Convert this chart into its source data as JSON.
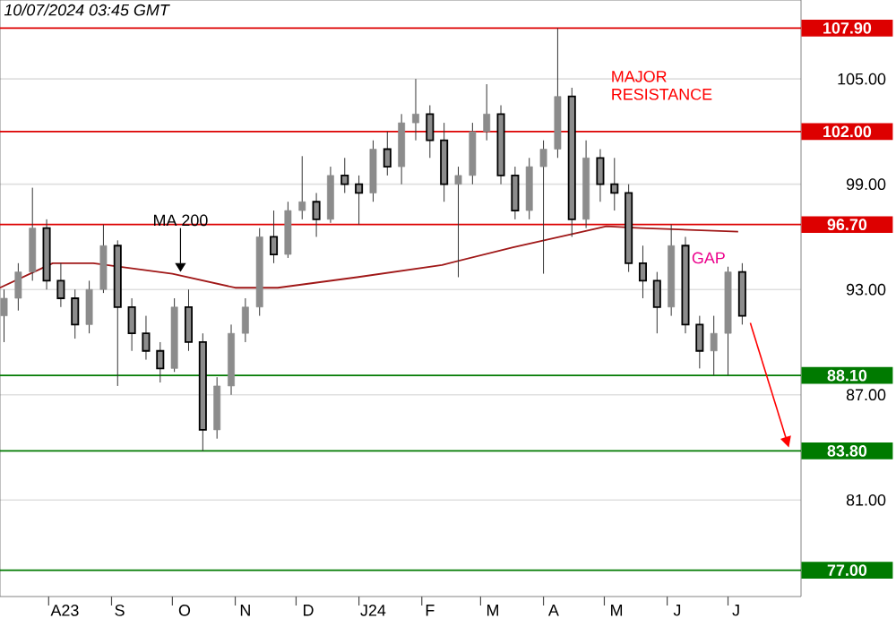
{
  "chart_data": {
    "type": "candlestick",
    "title": "10/07/2024 03:45 GMT",
    "color": "#8c8c8c",
    "x": [
      "2023-07-10",
      "2023-07-17",
      "2023-07-24",
      "2023-07-31",
      "2023-08-07",
      "2023-08-14",
      "2023-08-21",
      "2023-08-28",
      "2023-09-04",
      "2023-09-11",
      "2023-09-18",
      "2023-09-25",
      "2023-10-02",
      "2023-10-09",
      "2023-10-16",
      "2023-10-23",
      "2023-10-30",
      "2023-11-06",
      "2023-11-13",
      "2023-11-20",
      "2023-11-27",
      "2023-12-04",
      "2023-12-11",
      "2023-12-18",
      "2023-12-25",
      "2024-01-01",
      "2024-01-08",
      "2024-01-15",
      "2024-01-22",
      "2024-01-29",
      "2024-02-05",
      "2024-02-12",
      "2024-02-19",
      "2024-02-26",
      "2024-03-04",
      "2024-03-11",
      "2024-03-18",
      "2024-03-25",
      "2024-04-01",
      "2024-04-08",
      "2024-04-15",
      "2024-04-22",
      "2024-04-29",
      "2024-05-06",
      "2024-05-13",
      "2024-05-20",
      "2024-05-27",
      "2024-06-03",
      "2024-06-10",
      "2024-06-17",
      "2024-06-24",
      "2024-07-01",
      "2024-07-08"
    ],
    "ohlc": [
      [
        91.5,
        93.0,
        90.0,
        92.5
      ],
      [
        92.5,
        94.5,
        91.8,
        94.0
      ],
      [
        94.0,
        98.8,
        93.5,
        96.5
      ],
      [
        96.5,
        97.0,
        93.0,
        93.5
      ],
      [
        93.5,
        94.5,
        92.0,
        92.5
      ],
      [
        92.5,
        93.0,
        90.2,
        91.0
      ],
      [
        91.0,
        93.5,
        90.5,
        93.0
      ],
      [
        93.0,
        96.7,
        92.8,
        95.5
      ],
      [
        95.5,
        95.8,
        87.5,
        92.0
      ],
      [
        92.0,
        92.5,
        89.5,
        90.5
      ],
      [
        90.5,
        91.5,
        89.0,
        89.5
      ],
      [
        89.5,
        90.0,
        87.7,
        88.5
      ],
      [
        88.5,
        92.5,
        88.3,
        92.0
      ],
      [
        92.0,
        93.0,
        89.5,
        90.0
      ],
      [
        90.0,
        90.5,
        83.8,
        85.0
      ],
      [
        85.0,
        88.0,
        84.5,
        87.5
      ],
      [
        87.5,
        91.0,
        87.0,
        90.5
      ],
      [
        90.5,
        92.5,
        90.0,
        92.0
      ],
      [
        92.0,
        96.5,
        91.5,
        96.0
      ],
      [
        96.0,
        97.5,
        94.5,
        95.0
      ],
      [
        95.0,
        98.0,
        94.8,
        97.5
      ],
      [
        97.5,
        100.6,
        97.0,
        98.0
      ],
      [
        98.0,
        98.5,
        96.0,
        97.0
      ],
      [
        97.0,
        100.0,
        96.8,
        99.5
      ],
      [
        99.5,
        100.5,
        98.5,
        99.0
      ],
      [
        99.0,
        99.5,
        96.7,
        98.5
      ],
      [
        98.5,
        101.5,
        98.0,
        101.0
      ],
      [
        101.0,
        102.0,
        99.5,
        100.0
      ],
      [
        100.0,
        103.0,
        99.0,
        102.5
      ],
      [
        102.5,
        105.0,
        101.5,
        103.0
      ],
      [
        103.0,
        103.5,
        100.5,
        101.5
      ],
      [
        101.5,
        102.5,
        98.0,
        99.0
      ],
      [
        99.0,
        100.0,
        93.7,
        99.5
      ],
      [
        99.5,
        102.5,
        99.0,
        102.0
      ],
      [
        102.0,
        104.7,
        101.5,
        103.0
      ],
      [
        103.0,
        103.5,
        99.0,
        99.5
      ],
      [
        99.5,
        100.0,
        97.0,
        97.5
      ],
      [
        97.5,
        100.5,
        97.0,
        100.0
      ],
      [
        100.0,
        101.5,
        93.9,
        101.0
      ],
      [
        101.0,
        107.9,
        100.5,
        104.0
      ],
      [
        104.0,
        104.5,
        96.0,
        97.0
      ],
      [
        97.0,
        101.5,
        96.5,
        100.5
      ],
      [
        100.5,
        101.0,
        98.0,
        99.0
      ],
      [
        99.0,
        100.5,
        97.5,
        98.5
      ],
      [
        98.5,
        99.0,
        94.0,
        94.5
      ],
      [
        94.5,
        95.5,
        92.5,
        93.5
      ],
      [
        93.5,
        94.0,
        90.5,
        92.0
      ],
      [
        92.0,
        96.7,
        91.5,
        95.5
      ],
      [
        95.5,
        96.0,
        90.5,
        91.0
      ],
      [
        91.0,
        91.5,
        88.5,
        89.5
      ],
      [
        89.5,
        91.5,
        88.1,
        90.5
      ],
      [
        90.5,
        94.3,
        88.1,
        94.0
      ],
      [
        94.0,
        94.5,
        91.0,
        91.5
      ]
    ],
    "series": [
      {
        "type": "line",
        "color": "#a01818",
        "x": [
          "2023-07-08",
          "2023-08-03",
          "2023-08-23",
          "2023-10-01",
          "2023-11-01",
          "2023-11-22",
          "2023-12-31",
          "2024-02-11",
          "2024-03-17",
          "2024-05-02",
          "2024-05-19",
          "2024-07-06"
        ],
        "values": [
          93.1,
          94.5,
          94.5,
          93.9,
          93.1,
          93.1,
          93.7,
          94.4,
          95.4,
          96.6,
          96.5,
          96.3
        ]
      }
    ],
    "xlim": [
      "2023-07-08",
      "2024-08-06"
    ],
    "xticks": [
      {
        "value": "2023-08-01",
        "label": null
      },
      {
        "value": "2023-08-09",
        "label": "A23"
      },
      {
        "value": "2023-09-01",
        "label": null
      },
      {
        "value": "2023-09-05",
        "label": "S"
      },
      {
        "value": "2023-10-01",
        "label": null
      },
      {
        "value": "2023-10-07",
        "label": "O"
      },
      {
        "value": "2023-11-01",
        "label": null
      },
      {
        "value": "2023-11-06",
        "label": "N"
      },
      {
        "value": "2023-12-01",
        "label": null
      },
      {
        "value": "2023-12-07",
        "label": "D"
      },
      {
        "value": "2024-01-01",
        "label": null
      },
      {
        "value": "2024-01-08",
        "label": "J24"
      },
      {
        "value": "2024-02-01",
        "label": null
      },
      {
        "value": "2024-02-05",
        "label": "F"
      },
      {
        "value": "2024-03-01",
        "label": null
      },
      {
        "value": "2024-03-07",
        "label": "M"
      },
      {
        "value": "2024-04-01",
        "label": null
      },
      {
        "value": "2024-04-06",
        "label": "A"
      },
      {
        "value": "2024-05-01",
        "label": null
      },
      {
        "value": "2024-05-07",
        "label": "M"
      },
      {
        "value": "2024-06-01",
        "label": null
      },
      {
        "value": "2024-06-06",
        "label": "J"
      },
      {
        "value": "2024-07-01",
        "label": null
      },
      {
        "value": "2024-07-05",
        "label": "J"
      }
    ],
    "ylim": [
      75.5,
      109.5
    ],
    "yticks": [
      {
        "value": 81,
        "label": "81.00"
      },
      {
        "value": 87,
        "label": "87.00"
      },
      {
        "value": 93,
        "label": "93.00"
      },
      {
        "value": 99,
        "label": "99.00"
      },
      {
        "value": 105,
        "label": "105.00"
      }
    ],
    "grid": "y",
    "ref_lines": [
      {
        "axis": "y",
        "value": 107.9,
        "label": "107.90",
        "color": "#dd0000"
      },
      {
        "axis": "y",
        "value": 102.0,
        "label": "102.00",
        "color": "#dd0000"
      },
      {
        "axis": "y",
        "value": 96.7,
        "label": "96.70",
        "color": "#dd0000"
      },
      {
        "axis": "y",
        "value": 88.1,
        "label": "88.10",
        "color": "#007a00"
      },
      {
        "axis": "y",
        "value": 83.8,
        "label": "83.80",
        "color": "#007a00"
      },
      {
        "axis": "y",
        "value": 77.0,
        "label": "77.00",
        "color": "#007a00"
      }
    ],
    "annotations": [
      {
        "text": "MA 200",
        "x": "2023-10-05",
        "y": 93.9
      },
      "MAJOR RESISTANCE",
      {
        "text": "GAP",
        "x": "2024-06-12",
        "y": 94.8
      }
    ]
  }
}
